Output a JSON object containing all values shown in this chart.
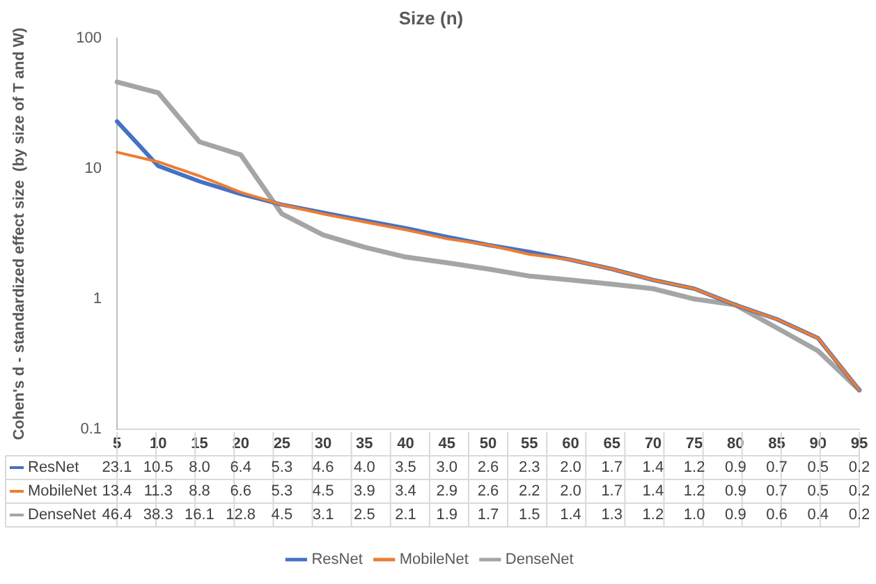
{
  "chart_data": {
    "type": "line",
    "xlabel": "Size (n)",
    "ylabel": "Cohen's d - standardized effect size  (by size of T and W)",
    "categories": [
      "5",
      "10",
      "15",
      "20",
      "25",
      "30",
      "35",
      "40",
      "45",
      "50",
      "55",
      "60",
      "65",
      "70",
      "75",
      "80",
      "85",
      "90",
      "95"
    ],
    "series": [
      {
        "name": "ResNet",
        "color": "#4472c4",
        "values": [
          23.1,
          10.5,
          8.0,
          6.4,
          5.3,
          4.6,
          4.0,
          3.5,
          3.0,
          2.6,
          2.3,
          2.0,
          1.7,
          1.4,
          1.2,
          0.9,
          0.7,
          0.5,
          0.2
        ],
        "value_labels": [
          "23.1",
          "10.5",
          "8.0",
          "6.4",
          "5.3",
          "4.6",
          "4.0",
          "3.5",
          "3.0",
          "2.6",
          "2.3",
          "2.0",
          "1.7",
          "1.4",
          "1.2",
          "0.9",
          "0.7",
          "0.5",
          "0.2"
        ]
      },
      {
        "name": "MobileNet",
        "color": "#ed7d31",
        "values": [
          13.4,
          11.3,
          8.8,
          6.6,
          5.3,
          4.5,
          3.9,
          3.4,
          2.9,
          2.6,
          2.2,
          2.0,
          1.7,
          1.4,
          1.2,
          0.9,
          0.7,
          0.5,
          0.2
        ],
        "value_labels": [
          "13.4",
          "11.3",
          "8.8",
          "6.6",
          "5.3",
          "4.5",
          "3.9",
          "3.4",
          "2.9",
          "2.6",
          "2.2",
          "2.0",
          "1.7",
          "1.4",
          "1.2",
          "0.9",
          "0.7",
          "0.5",
          "0.2"
        ]
      },
      {
        "name": "DenseNet",
        "color": "#a5a5a5",
        "values": [
          46.4,
          38.3,
          16.1,
          12.8,
          4.5,
          3.1,
          2.5,
          2.1,
          1.9,
          1.7,
          1.5,
          1.4,
          1.3,
          1.2,
          1.0,
          0.9,
          0.6,
          0.4,
          0.2
        ],
        "value_labels": [
          "46.4",
          "38.3",
          "16.1",
          "12.8",
          "4.5",
          "3.1",
          "2.5",
          "2.1",
          "1.9",
          "1.7",
          "1.5",
          "1.4",
          "1.3",
          "1.2",
          "1.0",
          "0.9",
          "0.6",
          "0.4",
          "0.2"
        ]
      }
    ],
    "log": true,
    "ylim": [
      0.1,
      100
    ],
    "yticks": [
      0.1,
      1,
      10,
      100
    ],
    "grid": false,
    "legend": "bottom",
    "marker": "none",
    "line_style": "solid"
  }
}
